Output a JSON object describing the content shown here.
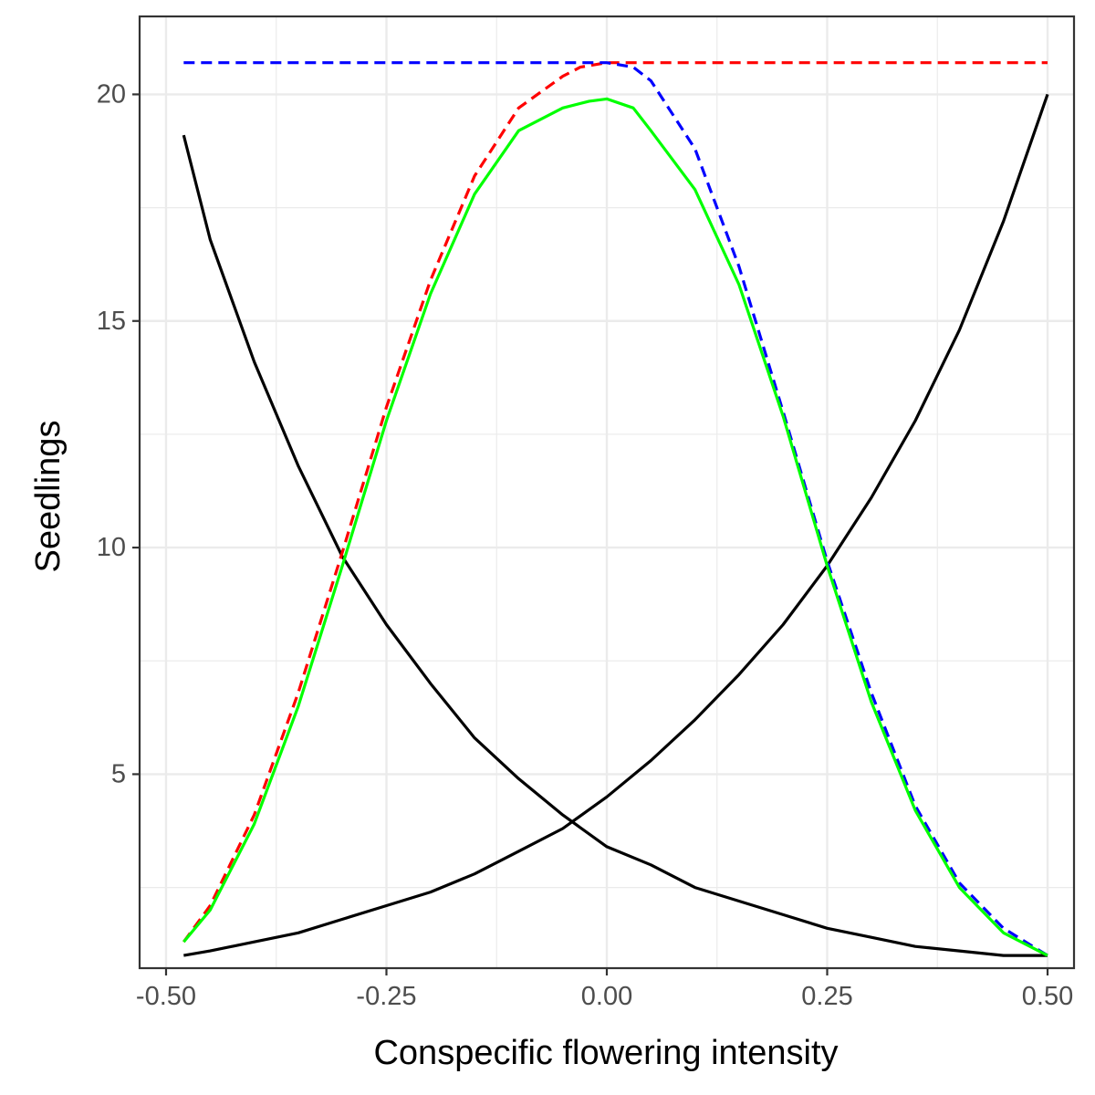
{
  "chart_data": {
    "type": "line",
    "title": "",
    "xlabel": "Conspecific flowering intensity",
    "ylabel": "Seedlings",
    "xlim": [
      -0.53,
      0.53
    ],
    "ylim": [
      0.72,
      21.72
    ],
    "x_ticks": [
      {
        "value": -0.5,
        "label": "-0.50"
      },
      {
        "value": -0.25,
        "label": "-0.25"
      },
      {
        "value": 0,
        "label": "0.00"
      },
      {
        "value": 0.25,
        "label": "0.25"
      },
      {
        "value": 0.5,
        "label": "0.50"
      }
    ],
    "y_ticks": [
      {
        "value": 5,
        "label": "5"
      },
      {
        "value": 10,
        "label": "10"
      },
      {
        "value": 15,
        "label": "15"
      },
      {
        "value": 20,
        "label": "20"
      }
    ],
    "x_minor": [
      -0.375,
      -0.125,
      0.125,
      0.375
    ],
    "y_minor": [
      2.5,
      7.5,
      12.5,
      17.5
    ],
    "grid": true,
    "legend": "none",
    "background": "#ffffff",
    "grid_color": "#ebebeb",
    "panel_border_color": "#333333",
    "series": [
      {
        "color": "#000000",
        "dash": "solid",
        "x": [
          -0.48,
          -0.45,
          -0.4,
          -0.35,
          -0.3,
          -0.25,
          -0.2,
          -0.15,
          -0.1,
          -0.05,
          0,
          0.05,
          0.1,
          0.15,
          0.2,
          0.25,
          0.3,
          0.35,
          0.4,
          0.45,
          0.5
        ],
        "y": [
          19.1,
          16.8,
          14.1,
          11.8,
          9.8,
          8.3,
          7.0,
          5.8,
          4.9,
          4.1,
          3.4,
          3.0,
          2.5,
          2.2,
          1.9,
          1.6,
          1.4,
          1.2,
          1.1,
          1.0,
          1.0
        ]
      },
      {
        "color": "#000000",
        "dash": "solid",
        "x": [
          -0.48,
          -0.45,
          -0.4,
          -0.35,
          -0.3,
          -0.25,
          -0.2,
          -0.15,
          -0.1,
          -0.05,
          0,
          0.05,
          0.1,
          0.15,
          0.2,
          0.25,
          0.3,
          0.35,
          0.4,
          0.45,
          0.5
        ],
        "y": [
          1.0,
          1.1,
          1.3,
          1.5,
          1.8,
          2.1,
          2.4,
          2.8,
          3.3,
          3.8,
          4.5,
          5.3,
          6.2,
          7.2,
          8.3,
          9.6,
          11.1,
          12.8,
          14.8,
          17.2,
          20.0
        ]
      },
      {
        "color": "#ff0000",
        "dash": "dashed",
        "x": [
          -0.48,
          -0.45,
          -0.4,
          -0.35,
          -0.3,
          -0.25,
          -0.2,
          -0.15,
          -0.1,
          -0.05,
          -0.03,
          0,
          0.03,
          0.1,
          0.2,
          0.3,
          0.4,
          0.5
        ],
        "y": [
          1.3,
          2.1,
          4.1,
          6.8,
          9.9,
          13.1,
          15.9,
          18.2,
          19.7,
          20.4,
          20.6,
          20.7,
          20.7,
          20.7,
          20.7,
          20.7,
          20.7,
          20.7
        ]
      },
      {
        "color": "#0000ff",
        "dash": "dashed",
        "x": [
          -0.48,
          -0.4,
          -0.3,
          -0.2,
          -0.1,
          0,
          0.03,
          0.05,
          0.1,
          0.15,
          0.2,
          0.25,
          0.3,
          0.35,
          0.4,
          0.45,
          0.5
        ],
        "y": [
          20.7,
          20.7,
          20.7,
          20.7,
          20.7,
          20.7,
          20.6,
          20.3,
          18.8,
          16.2,
          13.0,
          9.7,
          6.8,
          4.3,
          2.6,
          1.6,
          1.0
        ]
      },
      {
        "color": "#00ff00",
        "dash": "solid",
        "x": [
          -0.48,
          -0.45,
          -0.4,
          -0.35,
          -0.3,
          -0.25,
          -0.2,
          -0.15,
          -0.1,
          -0.05,
          -0.02,
          0,
          0.03,
          0.05,
          0.1,
          0.15,
          0.2,
          0.25,
          0.3,
          0.35,
          0.4,
          0.45,
          0.5
        ],
        "y": [
          1.3,
          2.0,
          3.9,
          6.5,
          9.6,
          12.8,
          15.6,
          17.8,
          19.2,
          19.7,
          19.85,
          19.9,
          19.7,
          19.2,
          17.9,
          15.8,
          12.9,
          9.6,
          6.6,
          4.2,
          2.5,
          1.5,
          1.0
        ]
      }
    ]
  }
}
